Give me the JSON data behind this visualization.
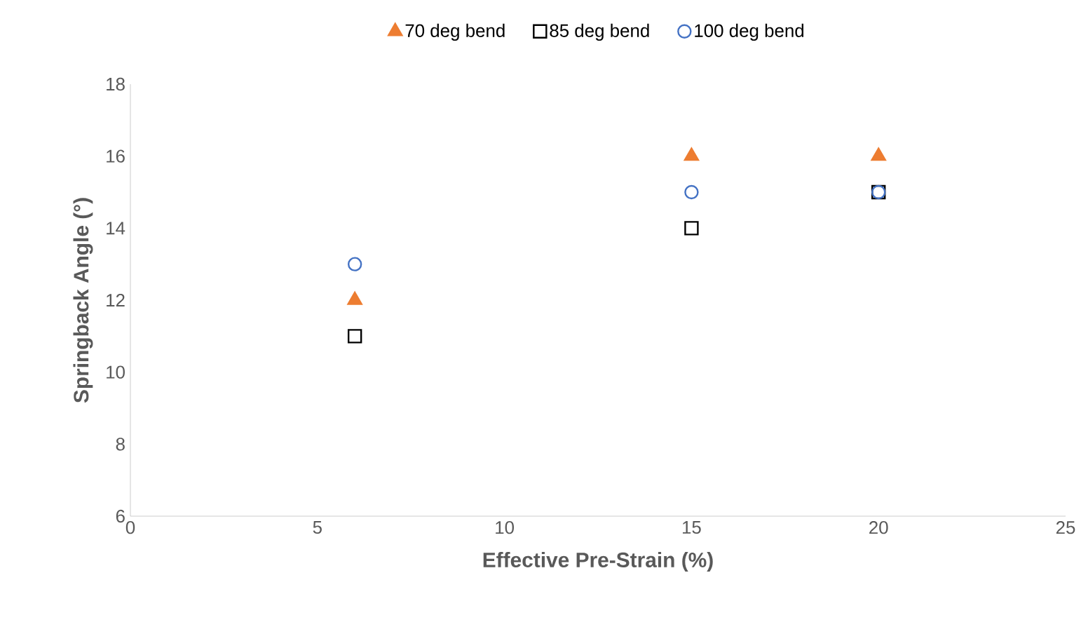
{
  "chart_data": {
    "type": "scatter",
    "xlabel": "Effective Pre-Strain (%)",
    "ylabel": "Springback Angle (°)",
    "x": [
      6,
      15,
      20
    ],
    "series": [
      {
        "name": "70 deg bend",
        "color": "#ed7d31",
        "marker": "triangle",
        "values": [
          12,
          16,
          16
        ]
      },
      {
        "name": "85 deg bend",
        "color": "#000000",
        "marker": "square",
        "values": [
          11,
          14,
          15
        ]
      },
      {
        "name": "100 deg bend",
        "color": "#4472c4",
        "marker": "circle",
        "values": [
          13,
          15,
          15
        ]
      }
    ],
    "xlim": [
      0,
      25
    ],
    "xticks": [
      0,
      5,
      10,
      15,
      20,
      25
    ],
    "ylim": [
      6,
      18
    ],
    "yticks": [
      6,
      8,
      10,
      12,
      14,
      16,
      18
    ],
    "grid": false,
    "legend": "top"
  }
}
